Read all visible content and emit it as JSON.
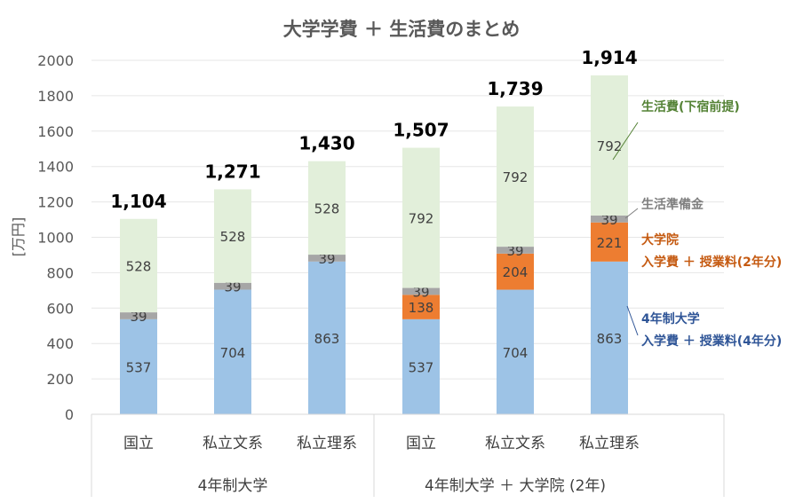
{
  "chart_data": {
    "type": "bar",
    "stacked": true,
    "title": "大学学費 ＋ 生活費のまとめ",
    "ylabel": "[万円]",
    "ylim": [
      0,
      2000
    ],
    "yticks": [
      "0",
      "200",
      "400",
      "600",
      "800",
      "1000",
      "1200",
      "1400",
      "1600",
      "1800",
      "2000"
    ],
    "grid": true,
    "categories": [
      "国立",
      "私立文系",
      "私立理系",
      "国立",
      "私立文系",
      "私立理系"
    ],
    "groups": [
      {
        "label": "4年制大学",
        "count": 3
      },
      {
        "label": "4年制大学 ＋ 大学院 (2年)",
        "count": 3
      }
    ],
    "series": [
      {
        "key": "undergrad",
        "values": [
          537,
          704,
          863,
          537,
          704,
          863
        ],
        "color": "#9dc3e6"
      },
      {
        "key": "grad",
        "values": [
          0,
          0,
          0,
          138,
          204,
          221
        ],
        "color": "#ed7d31"
      },
      {
        "key": "prep",
        "values": [
          39,
          39,
          39,
          39,
          39,
          39
        ],
        "color": "#a6a6a6"
      },
      {
        "key": "living",
        "values": [
          528,
          528,
          528,
          792,
          792,
          792
        ],
        "color": "#e2efda"
      }
    ],
    "totals": [
      "1,104",
      "1,271",
      "1,430",
      "1,507",
      "1,739",
      "1,914"
    ],
    "annotations": [
      {
        "series": "living",
        "lines": [
          "生活費(下宿前提)"
        ],
        "color": "#548235"
      },
      {
        "series": "prep",
        "lines": [
          "生活準備金"
        ],
        "color": "#7f7f7f"
      },
      {
        "series": "grad",
        "lines": [
          "大学院",
          "入学費 ＋ 授業料(2年分)"
        ],
        "color": "#c55a11"
      },
      {
        "series": "undergrad",
        "lines": [
          "4年制大学",
          "入学費 ＋ 授業料(4年分)"
        ],
        "color": "#2f5597"
      }
    ]
  }
}
